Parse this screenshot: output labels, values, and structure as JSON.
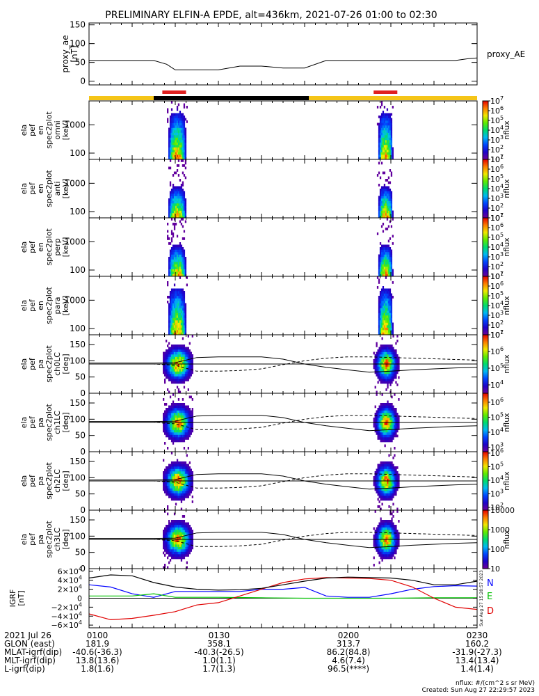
{
  "title": "PRELIMINARY ELFIN-A EPDE, alt=436km, 2021-07-26 01:00 to 02:30",
  "time_range": {
    "start_min": 60,
    "end_min": 150
  },
  "chart_data": [
    {
      "type": "line",
      "name": "proxy_ae",
      "ylabel": "proxy_ae [nT]",
      "ylabel_lines": [
        "proxy_ae",
        "[nT]"
      ],
      "legend": "proxy_AE",
      "ylim": [
        -10,
        155
      ],
      "yticks": [
        0,
        50,
        100,
        150
      ],
      "ytick_labels": [
        "0",
        "50",
        "100",
        "150"
      ],
      "x": [
        60,
        65,
        70,
        75,
        78,
        80,
        85,
        90,
        95,
        100,
        105,
        110,
        115,
        120,
        125,
        130,
        135,
        140,
        145,
        148,
        150
      ],
      "y": [
        55,
        55,
        55,
        55,
        45,
        30,
        30,
        30,
        40,
        40,
        35,
        35,
        55,
        55,
        55,
        55,
        55,
        55,
        55,
        60,
        62
      ]
    },
    {
      "type": "status_bar",
      "name": "state_bar",
      "segments": [
        {
          "start": 60,
          "end": 75,
          "color": "#f5c518"
        },
        {
          "start": 75,
          "end": 111,
          "color": "#000000"
        },
        {
          "start": 111,
          "end": 150,
          "color": "#f5c518"
        }
      ],
      "marks": [
        {
          "start": 77,
          "end": 82.5,
          "color": "#e02020"
        },
        {
          "start": 126,
          "end": 131.5,
          "color": "#e02020"
        }
      ]
    },
    {
      "type": "heatmap",
      "name": "en-omni",
      "log_y": true,
      "ylabel_lines": [
        "ela",
        "pef",
        "en",
        "spec2plot",
        "omni",
        "[keV]"
      ],
      "ylim": [
        60,
        7000
      ],
      "yticks": [
        100,
        1000
      ],
      "ytick_labels": [
        "100",
        "1000"
      ],
      "colorbar": {
        "log": true,
        "min": 1,
        "max": 7,
        "tick_exps": [
          1,
          2,
          3,
          4,
          5,
          6,
          7
        ],
        "label": "nflux"
      }
    },
    {
      "type": "heatmap",
      "name": "en-anti",
      "log_y": true,
      "ylabel_lines": [
        "ela",
        "pef",
        "en",
        "spec2plot",
        "anti",
        "[keV]"
      ],
      "ylim": [
        60,
        7000
      ],
      "yticks": [
        100,
        1000
      ],
      "ytick_labels": [
        "100",
        "1000"
      ],
      "colorbar": {
        "log": true,
        "min": 1,
        "max": 7,
        "tick_exps": [
          1,
          2,
          3,
          4,
          5,
          6,
          7
        ],
        "label": "nflux"
      }
    },
    {
      "type": "heatmap",
      "name": "en-perp",
      "log_y": true,
      "ylabel_lines": [
        "ela",
        "pef",
        "en",
        "spec2plot",
        "perp",
        "[keV]"
      ],
      "ylim": [
        60,
        7000
      ],
      "yticks": [
        100,
        1000
      ],
      "ytick_labels": [
        "100",
        "1000"
      ],
      "colorbar": {
        "log": true,
        "min": 1,
        "max": 7,
        "tick_exps": [
          1,
          2,
          3,
          4,
          5,
          6,
          7
        ],
        "label": "nflux"
      }
    },
    {
      "type": "heatmap",
      "name": "en-para",
      "log_y": true,
      "ylabel_lines": [
        "ela",
        "pef",
        "en",
        "spec2plot",
        "para",
        "[keV]"
      ],
      "ylim": [
        60,
        7000
      ],
      "yticks": [
        100,
        1000
      ],
      "ytick_labels": [
        "100",
        "1000"
      ],
      "colorbar": {
        "log": true,
        "min": 1,
        "max": 7,
        "tick_exps": [
          1,
          2,
          3,
          4,
          5,
          6,
          7
        ],
        "label": "nflux"
      }
    },
    {
      "type": "heatmap",
      "name": "pa-ch0LC",
      "ylabel_lines": [
        "ela",
        "pef",
        "pa",
        "spec2plot",
        "ch0LC",
        "[deg]"
      ],
      "ylim": [
        0,
        180
      ],
      "yticks": [
        0,
        50,
        100,
        150
      ],
      "ytick_labels": [
        "0",
        "50",
        "100",
        "150"
      ],
      "colorbar": {
        "log": true,
        "min": 3.5,
        "max": 7,
        "tick_exps": [
          4,
          5,
          6,
          7
        ],
        "label": "nflux"
      }
    },
    {
      "type": "heatmap",
      "name": "pa-ch1LC",
      "ylabel_lines": [
        "ela",
        "pef",
        "pa",
        "spec2plot",
        "ch1LC",
        "[deg]"
      ],
      "ylim": [
        0,
        180
      ],
      "yticks": [
        0,
        50,
        100,
        150
      ],
      "ytick_labels": [
        "0",
        "50",
        "100",
        "150"
      ],
      "colorbar": {
        "log": true,
        "min": 2.7,
        "max": 6.6,
        "tick_exps": [
          3,
          4,
          5,
          6
        ],
        "label": "nflux"
      }
    },
    {
      "type": "heatmap",
      "name": "pa-ch2LC",
      "ylabel_lines": [
        "ela",
        "pef",
        "pa",
        "spec2plot",
        "ch2LC",
        "[deg]"
      ],
      "ylim": [
        0,
        180
      ],
      "yticks": [
        0,
        50,
        100,
        150
      ],
      "ytick_labels": [
        "0",
        "50",
        "100",
        "150"
      ],
      "colorbar": {
        "log": true,
        "min": 1.8,
        "max": 6.1,
        "tick_exps": [
          2,
          3,
          4,
          5,
          6
        ],
        "label": "nflux"
      }
    },
    {
      "type": "heatmap",
      "name": "pa-ch3LC",
      "ylabel_lines": [
        "ela",
        "pef",
        "pa",
        "spec2plot",
        "ch3LC",
        "[deg]"
      ],
      "ylim": [
        0,
        180
      ],
      "yticks": [
        0,
        50,
        100,
        150
      ],
      "ytick_labels": [
        "0",
        "50",
        "100",
        "150"
      ],
      "colorbar": {
        "log": false,
        "min": 1,
        "max": 4,
        "tick_exps": [
          1,
          2,
          3,
          4
        ],
        "tick_labels": [
          "10",
          "100",
          "1000",
          "10000"
        ],
        "label": "nflux"
      }
    },
    {
      "type": "line",
      "name": "igrf",
      "ylabel": "IGRF [nT]",
      "ylabel_lines": [
        "IGRF",
        "[nT]"
      ],
      "ylim": [
        -66000,
        66000
      ],
      "yticks": [
        -60000,
        -40000,
        -20000,
        0,
        20000,
        40000,
        60000
      ],
      "ytick_bases": [
        "−6×10",
        "−4×10",
        "−2×10",
        "0",
        "2×10",
        "4×10",
        "6×10"
      ],
      "ytick_exps": [
        "4",
        "4",
        "4",
        "",
        "4",
        "4",
        "4"
      ],
      "series": [
        {
          "name": "N",
          "color": "#0000ff",
          "x": [
            60,
            65,
            70,
            75,
            80,
            85,
            90,
            95,
            100,
            105,
            110,
            115,
            120,
            125,
            130,
            135,
            140,
            145,
            150
          ],
          "y": [
            30000,
            25000,
            10000,
            2000,
            15000,
            15000,
            15000,
            15000,
            20000,
            20000,
            24000,
            5000,
            2000,
            2000,
            10000,
            20000,
            26000,
            28000,
            27000
          ]
        },
        {
          "name": "E",
          "color": "#00c000",
          "x": [
            60,
            70,
            75,
            80,
            90,
            100,
            110,
            120,
            130,
            140,
            150
          ],
          "y": [
            5000,
            5000,
            10000,
            2000,
            2000,
            1000,
            0,
            0,
            0,
            1000,
            1000
          ]
        },
        {
          "name": "D",
          "color": "#e00000",
          "x": [
            60,
            65,
            70,
            75,
            80,
            85,
            90,
            95,
            100,
            105,
            110,
            115,
            120,
            125,
            130,
            135,
            140,
            145,
            150
          ],
          "y": [
            -35000,
            -48000,
            -45000,
            -38000,
            -30000,
            -15000,
            -10000,
            5000,
            20000,
            35000,
            43000,
            46000,
            45000,
            44000,
            40000,
            25000,
            0,
            -20000,
            -25000
          ]
        },
        {
          "name": "",
          "color": "#000000",
          "x": [
            60,
            65,
            70,
            75,
            80,
            85,
            90,
            95,
            100,
            105,
            110,
            115,
            120,
            125,
            130,
            135,
            140,
            145,
            150
          ],
          "y": [
            45000,
            52000,
            50000,
            35000,
            25000,
            20000,
            18000,
            19000,
            22000,
            30000,
            38000,
            45000,
            47000,
            46000,
            45000,
            40000,
            30000,
            30000,
            38000
          ]
        }
      ],
      "legend": [
        "N",
        "E",
        "D"
      ]
    }
  ],
  "side_stamp": "Sun Aug 27 15:28:57 2023",
  "bottom": {
    "rows": [
      {
        "label": "2021 Jul 26",
        "values": [
          "0100",
          "0130",
          "0200",
          "0230"
        ]
      },
      {
        "label": "GLON (east)",
        "values": [
          "181.9",
          "358.1",
          "313.7",
          "160.2"
        ]
      },
      {
        "label": "MLAT-igrf(dip)",
        "values": [
          "-40.6(-36.3)",
          "-40.3(-26.5)",
          "86.2(84.8)",
          "-31.9(-27.3)"
        ]
      },
      {
        "label": "MLT-igrf(dip)",
        "values": [
          "13.8(13.6)",
          "1.0(1.1)",
          "4.6(7.4)",
          "13.4(13.4)"
        ]
      },
      {
        "label": "L-igrf(dip)",
        "values": [
          "1.8(1.6)",
          "1.7(1.3)",
          "96.5(****)",
          "1.4(1.4)"
        ]
      }
    ],
    "footer_line1": "nflux: #/(cm^2 s sr MeV)",
    "footer_line2": "Created: Sun Aug 27 22:29:57 2023"
  }
}
